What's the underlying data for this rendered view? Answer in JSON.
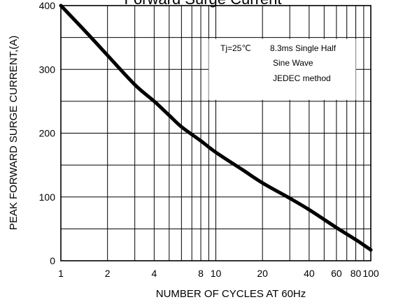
{
  "chart_data": {
    "type": "line",
    "title": "Forward Surge Current",
    "xlabel": "NUMBER OF CYCLES AT 60Hz",
    "ylabel": "PEAK FORWARD SURGE CURRENT,(A)",
    "x_scale": "log",
    "xlim": [
      1,
      100
    ],
    "ylim": [
      0,
      400
    ],
    "x_ticks": [
      1,
      2,
      4,
      8,
      10,
      20,
      40,
      60,
      80,
      100
    ],
    "x_tick_labels": [
      "1",
      "2",
      "4",
      "8",
      "10",
      "20",
      "40",
      "60",
      "80",
      "100"
    ],
    "y_ticks": [
      0,
      100,
      200,
      300,
      400
    ],
    "y_tick_labels": [
      "0",
      "100",
      "200",
      "300",
      "400"
    ],
    "grid": true,
    "x_minor_grid": [
      3,
      5,
      6,
      7,
      9,
      30,
      50,
      70,
      90
    ],
    "y_minor_grid": [
      50,
      150,
      250,
      350
    ],
    "annotations": [
      "Tj=25℃",
      "8.3ms Single Half",
      "Sine Wave",
      "JEDEC method"
    ],
    "series": [
      {
        "color": "#000000",
        "x": [
          1,
          1.5,
          2,
          3,
          4,
          5,
          6,
          8,
          10,
          15,
          20,
          30,
          40,
          60,
          80,
          100
        ],
        "y": [
          400,
          355,
          322,
          276,
          250,
          228,
          210,
          188,
          170,
          142,
          122,
          98,
          80,
          52,
          33,
          17
        ]
      }
    ]
  }
}
